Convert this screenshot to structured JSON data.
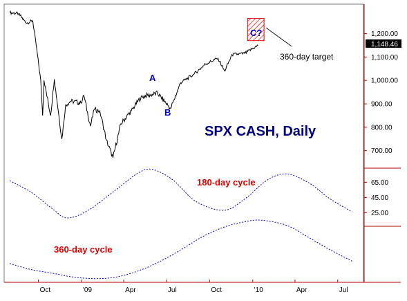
{
  "chart_data": [
    {
      "type": "line",
      "title": "SPX CASH, Daily",
      "series": [
        {
          "values": [
            [
              "2008-08-01",
              1290
            ],
            [
              "2008-08-20",
              1285
            ],
            [
              "2008-09-05",
              1245
            ],
            [
              "2008-09-19",
              1255
            ],
            [
              "2008-09-29",
              1110
            ],
            [
              "2008-10-06",
              1000
            ],
            [
              "2008-10-10",
              850
            ],
            [
              "2008-10-13",
              1000
            ],
            [
              "2008-10-27",
              850
            ],
            [
              "2008-11-04",
              1005
            ],
            [
              "2008-11-20",
              750
            ],
            [
              "2008-11-28",
              895
            ],
            [
              "2008-12-08",
              910
            ],
            [
              "2008-12-16",
              910
            ],
            [
              "2008-12-31",
              903
            ],
            [
              "2009-01-06",
              935
            ],
            [
              "2009-01-20",
              805
            ],
            [
              "2009-01-28",
              875
            ],
            [
              "2009-02-09",
              870
            ],
            [
              "2009-02-23",
              745
            ],
            [
              "2009-03-09",
              670
            ],
            [
              "2009-03-26",
              815
            ],
            [
              "2009-04-17",
              870
            ],
            [
              "2009-05-08",
              930
            ],
            [
              "2009-06-12",
              945
            ],
            [
              "2009-07-10",
              880
            ],
            [
              "2009-07-31",
              990
            ],
            [
              "2009-08-28",
              1025
            ],
            [
              "2009-09-22",
              1070
            ],
            [
              "2009-10-19",
              1095
            ],
            [
              "2009-11-02",
              1040
            ],
            [
              "2009-11-18",
              1110
            ],
            [
              "2009-12-15",
              1115
            ],
            [
              "2010-01-08",
              1145
            ],
            [
              "2010-01-12",
              1148.46
            ]
          ]
        }
      ],
      "yticks": [
        "700.00",
        "800.00",
        "900.00",
        "1,000.00",
        "1,100.00",
        "1,200.00"
      ],
      "yrange": [
        640,
        1320
      ],
      "last_value": "1,148.46",
      "annotations": {
        "a": "A",
        "b": "B",
        "c": "C?",
        "target": "360-day target"
      },
      "target_box": {
        "y_range": [
          1170,
          1265
        ],
        "x_range": [
          "2009-12-21",
          "2010-01-25"
        ]
      }
    },
    {
      "type": "line",
      "series": [
        {
          "name": "180-day cycle",
          "values": [
            [
              "2008-08-01",
              67
            ],
            [
              "2008-09-15",
              52
            ],
            [
              "2008-10-31",
              30
            ],
            [
              "2008-12-01",
              18
            ],
            [
              "2009-01-15",
              28
            ],
            [
              "2009-03-15",
              55
            ],
            [
              "2009-05-01",
              77
            ],
            [
              "2009-06-01",
              82
            ],
            [
              "2009-07-15",
              68
            ],
            [
              "2009-09-01",
              40
            ],
            [
              "2009-10-31",
              28
            ],
            [
              "2009-12-15",
              43
            ],
            [
              "2010-02-01",
              68
            ],
            [
              "2010-03-15",
              76
            ],
            [
              "2010-05-01",
              64
            ],
            [
              "2010-06-15",
              43
            ],
            [
              "2010-08-01",
              26
            ]
          ]
        },
        {
          "name": "360-day cycle",
          "values": [
            [
              "2008-08-01",
              -42
            ],
            [
              "2008-09-15",
              -50
            ],
            [
              "2008-11-01",
              -55
            ],
            [
              "2008-12-15",
              -60
            ],
            [
              "2009-01-31",
              -62
            ],
            [
              "2009-03-15",
              -60
            ],
            [
              "2009-05-01",
              -52
            ],
            [
              "2009-06-15",
              -40
            ],
            [
              "2009-08-01",
              -24
            ],
            [
              "2009-09-15",
              -7
            ],
            [
              "2009-11-01",
              6
            ],
            [
              "2009-12-15",
              13
            ],
            [
              "2010-01-20",
              15
            ],
            [
              "2010-03-15",
              8
            ],
            [
              "2010-05-01",
              -8
            ],
            [
              "2010-06-15",
              -24
            ],
            [
              "2010-08-01",
              -39
            ]
          ]
        }
      ],
      "yticks": [
        "25.00",
        "45.00",
        "65.00"
      ],
      "yrange": [
        -65,
        90
      ]
    }
  ],
  "xaxis": {
    "range": [
      "2008-07-20",
      "2010-08-25"
    ],
    "ticks": [
      {
        "date": "2008-10-01",
        "label": "Oct"
      },
      {
        "date": "2009-01-01",
        "label": "'09"
      },
      {
        "date": "2009-04-01",
        "label": "Apr"
      },
      {
        "date": "2009-07-01",
        "label": "Jul"
      },
      {
        "date": "2009-10-01",
        "label": "Oct"
      },
      {
        "date": "2010-01-01",
        "label": "'10"
      },
      {
        "date": "2010-04-01",
        "label": "Apr"
      },
      {
        "date": "2010-07-01",
        "label": "Jul"
      }
    ]
  },
  "colors": {
    "price": "#000000",
    "title": "#000080",
    "wave_label": "#0000cc",
    "cycle_line": "#0000cc",
    "cycle_label": "#e00000",
    "axis": "#b00000",
    "target_hatch": "#e00000"
  }
}
